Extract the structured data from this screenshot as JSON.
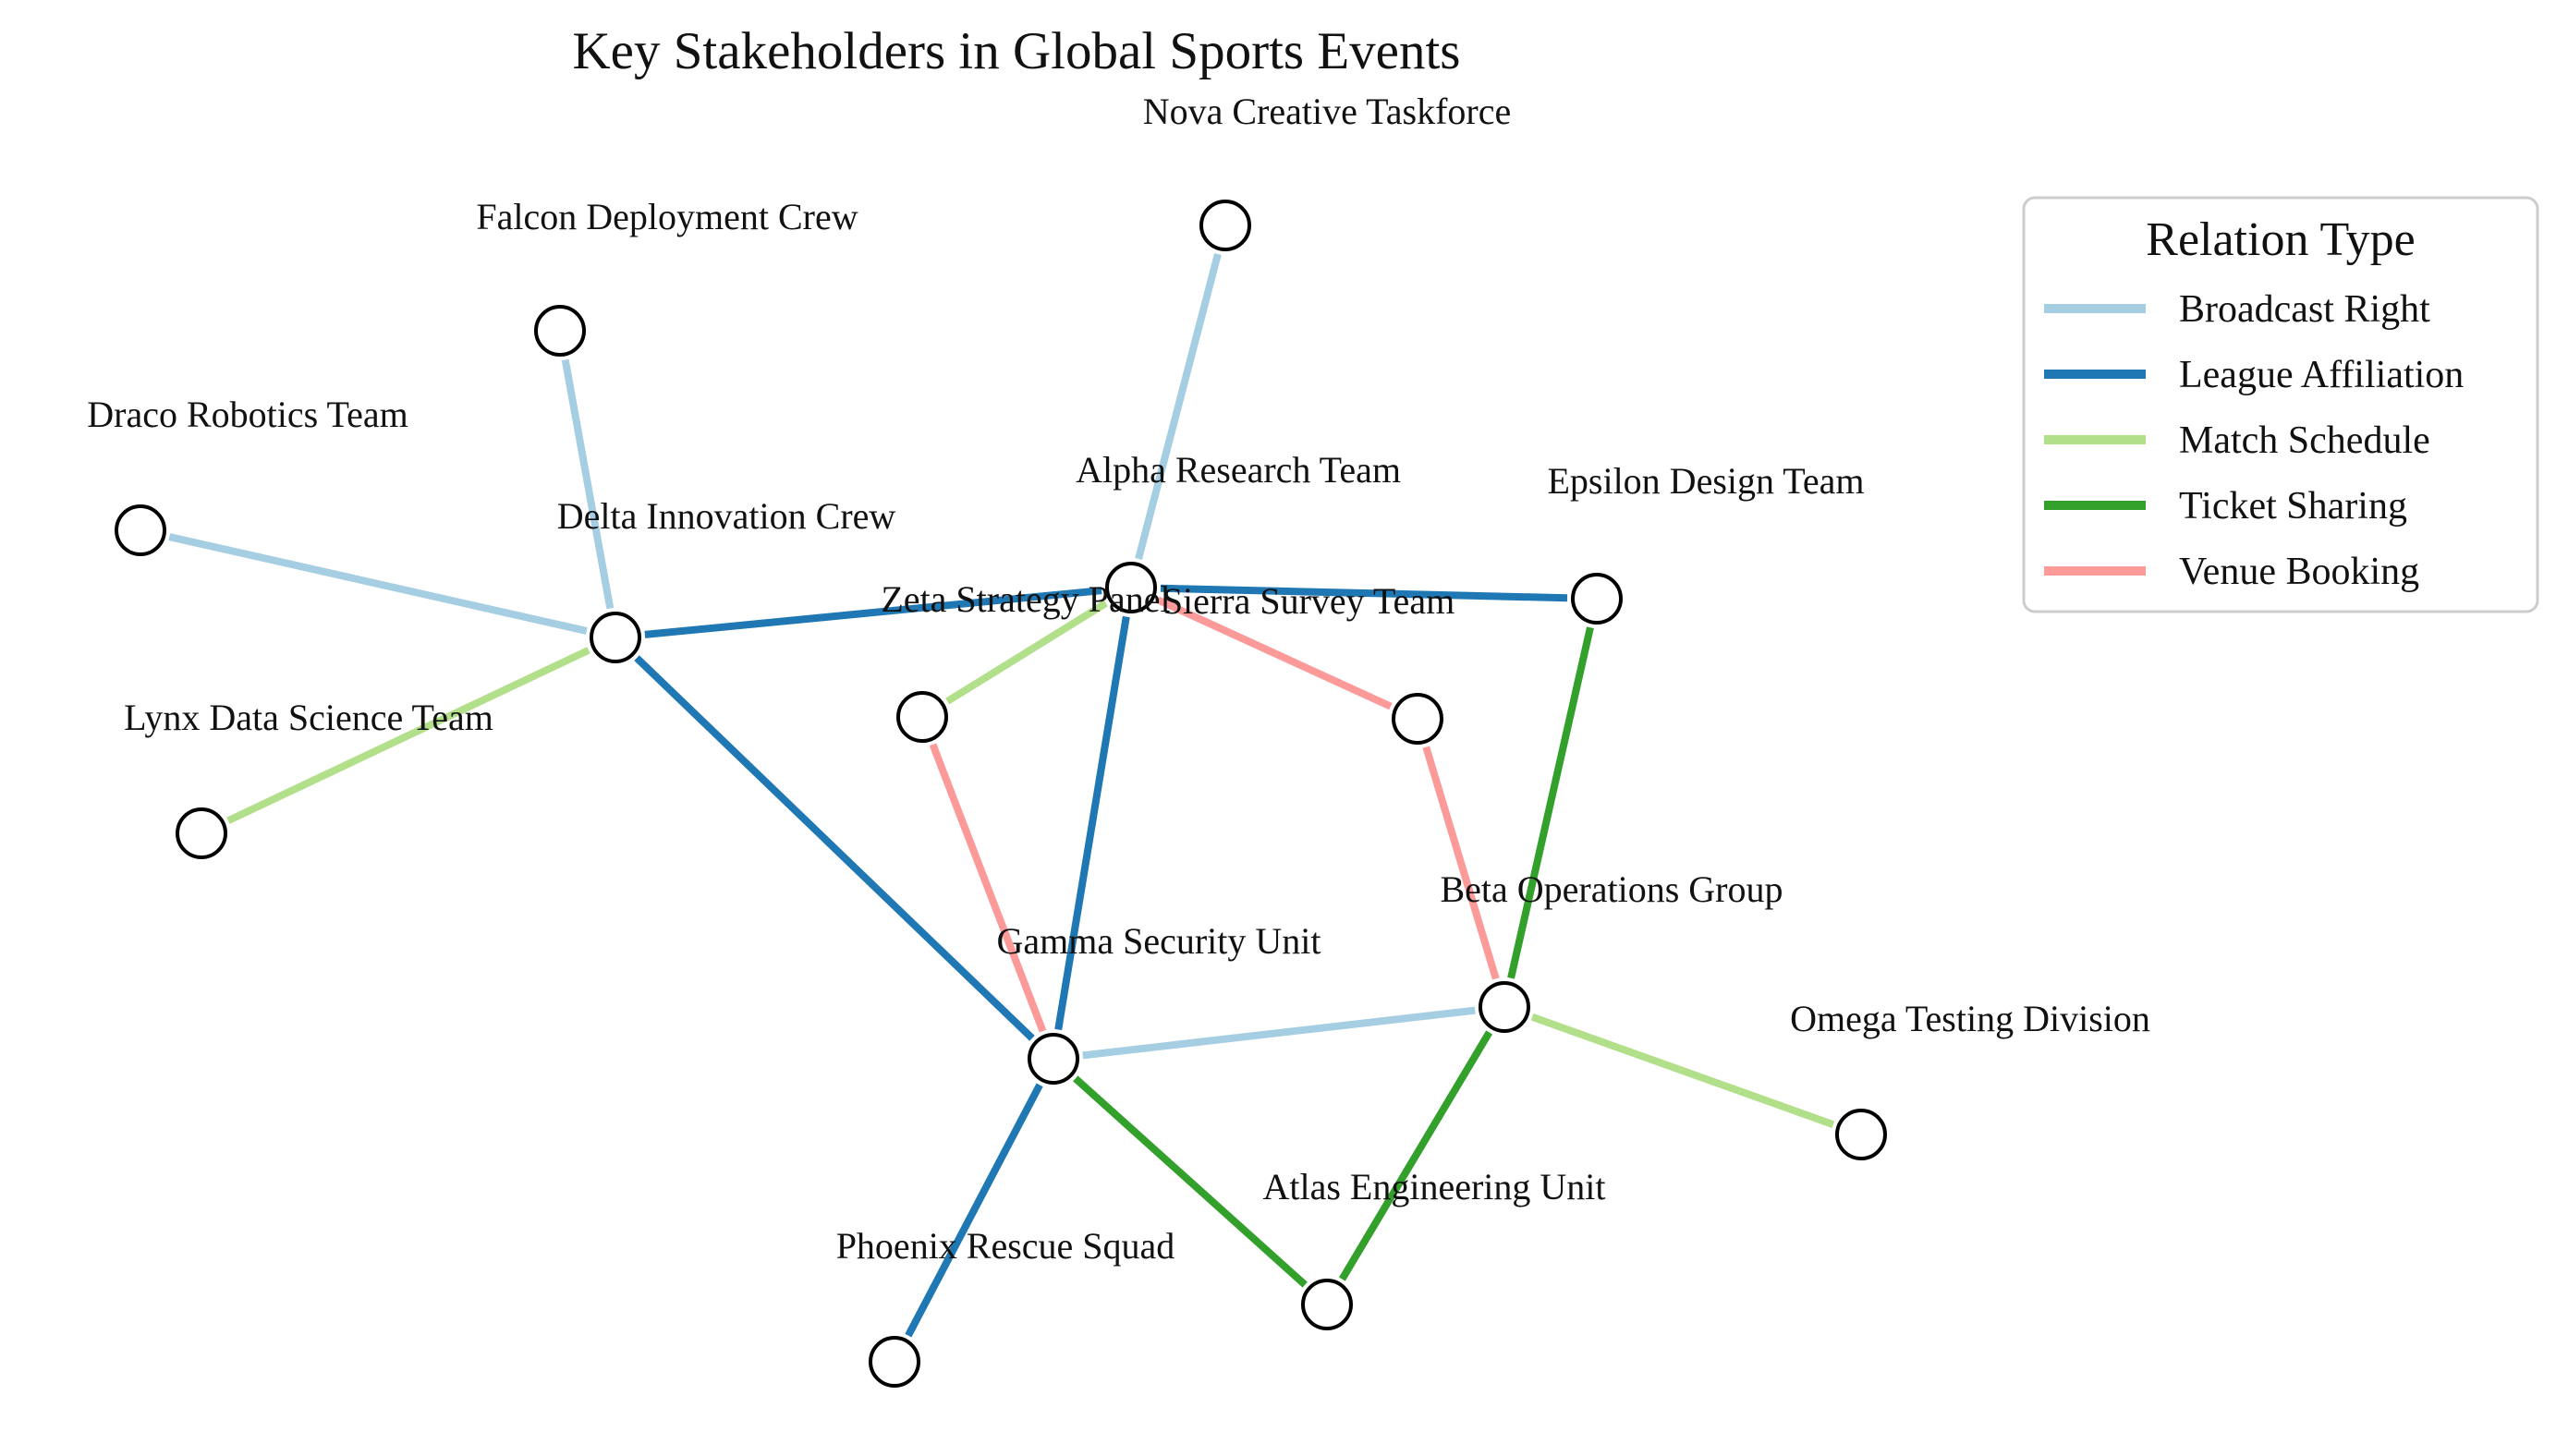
{
  "title": "Key Stakeholders in Global Sports Events",
  "legend": {
    "title": "Relation Type",
    "items": [
      {
        "key": "broadcast",
        "label": "Broadcast Right",
        "color": "#a6cee3"
      },
      {
        "key": "league",
        "label": "League Affiliation",
        "color": "#1f78b4"
      },
      {
        "key": "match",
        "label": "Match Schedule",
        "color": "#b2df8a"
      },
      {
        "key": "ticket",
        "label": "Ticket Sharing",
        "color": "#33a02c"
      },
      {
        "key": "venue",
        "label": "Venue Booking",
        "color": "#fb9a99"
      }
    ]
  },
  "nodes": [
    {
      "id": "nova",
      "label": "Nova Creative Taskforce"
    },
    {
      "id": "falcon",
      "label": "Falcon Deployment Crew"
    },
    {
      "id": "draco",
      "label": "Draco Robotics Team"
    },
    {
      "id": "delta",
      "label": "Delta Innovation Crew"
    },
    {
      "id": "alpha",
      "label": "Alpha Research Team"
    },
    {
      "id": "epsilon",
      "label": "Epsilon Design Team"
    },
    {
      "id": "zeta",
      "label": "Zeta Strategy Panel"
    },
    {
      "id": "sierra",
      "label": "Sierra Survey Team"
    },
    {
      "id": "lynx",
      "label": "Lynx Data Science Team"
    },
    {
      "id": "beta",
      "label": "Beta Operations Group"
    },
    {
      "id": "gamma",
      "label": "Gamma Security Unit"
    },
    {
      "id": "omega",
      "label": "Omega Testing Division"
    },
    {
      "id": "atlas",
      "label": "Atlas Engineering Unit"
    },
    {
      "id": "phoenix",
      "label": "Phoenix Rescue Squad"
    }
  ],
  "edges": [
    {
      "source": "alpha",
      "target": "nova",
      "type": "broadcast"
    },
    {
      "source": "delta",
      "target": "falcon",
      "type": "broadcast"
    },
    {
      "source": "delta",
      "target": "draco",
      "type": "broadcast"
    },
    {
      "source": "gamma",
      "target": "beta",
      "type": "broadcast"
    },
    {
      "source": "delta",
      "target": "alpha",
      "type": "league"
    },
    {
      "source": "alpha",
      "target": "epsilon",
      "type": "league"
    },
    {
      "source": "delta",
      "target": "gamma",
      "type": "league"
    },
    {
      "source": "alpha",
      "target": "gamma",
      "type": "league"
    },
    {
      "source": "gamma",
      "target": "phoenix",
      "type": "league"
    },
    {
      "source": "delta",
      "target": "lynx",
      "type": "match"
    },
    {
      "source": "alpha",
      "target": "zeta",
      "type": "match"
    },
    {
      "source": "beta",
      "target": "omega",
      "type": "match"
    },
    {
      "source": "epsilon",
      "target": "beta",
      "type": "ticket"
    },
    {
      "source": "gamma",
      "target": "atlas",
      "type": "ticket"
    },
    {
      "source": "beta",
      "target": "atlas",
      "type": "ticket"
    },
    {
      "source": "alpha",
      "target": "sierra",
      "type": "venue"
    },
    {
      "source": "sierra",
      "target": "beta",
      "type": "venue"
    },
    {
      "source": "zeta",
      "target": "gamma",
      "type": "venue"
    }
  ]
}
